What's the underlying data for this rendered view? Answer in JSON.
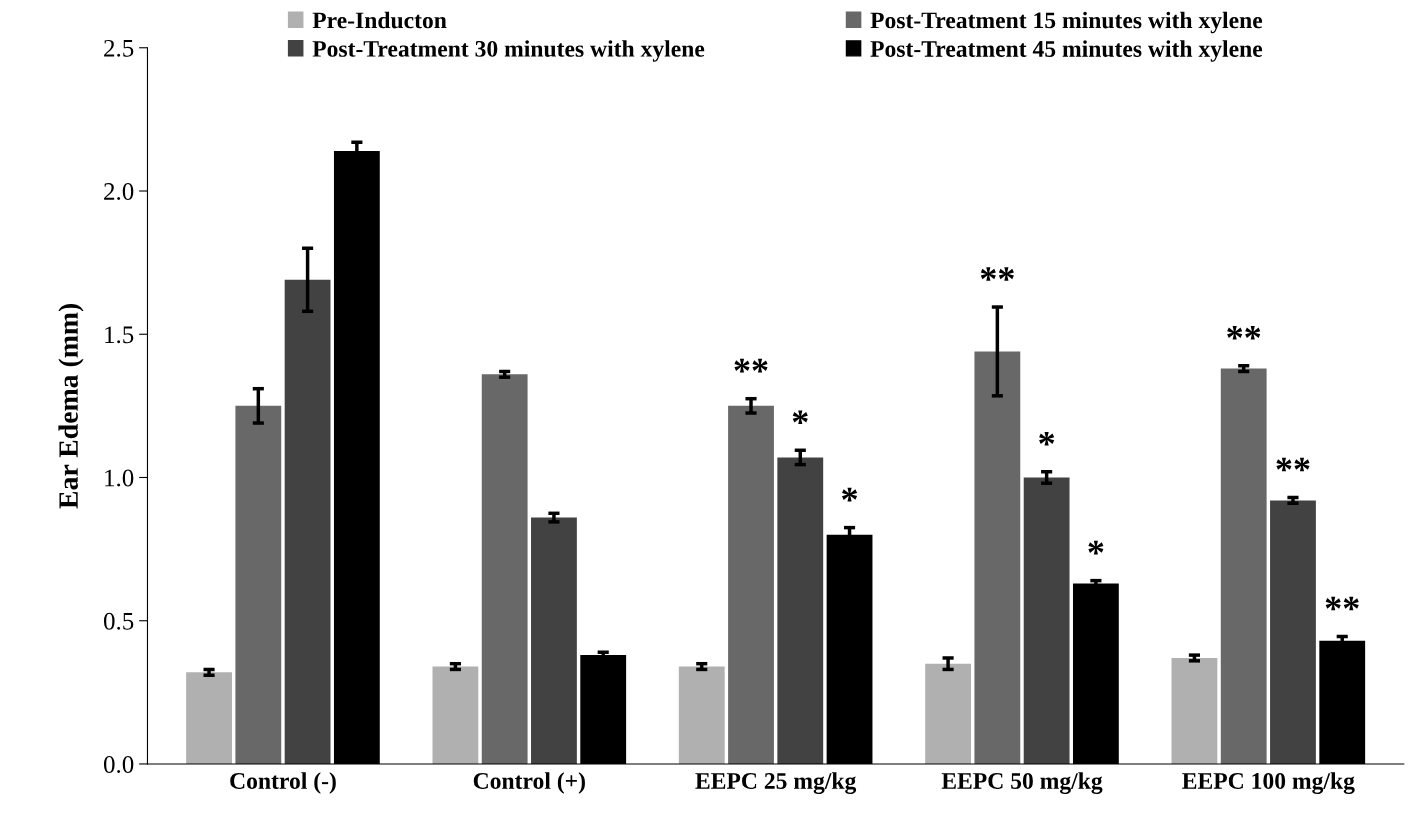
{
  "chart_data": {
    "type": "bar",
    "ylabel": "Ear Edema (mm)",
    "categories": [
      "Control (-)",
      "Control (+)",
      "EEPC 25 mg/kg",
      "EEPC 50 mg/kg",
      "EEPC 100 mg/kg"
    ],
    "series": [
      {
        "name": "Pre-Inducton",
        "color": "#b0b0b0",
        "values": [
          0.32,
          0.34,
          0.34,
          0.35,
          0.37
        ],
        "errors": [
          0.01,
          0.01,
          0.01,
          0.02,
          0.01
        ]
      },
      {
        "name": "Post-Treatment 15 minutes with xylene",
        "color": "#686868",
        "values": [
          1.25,
          1.36,
          1.25,
          1.44,
          1.38
        ],
        "errors": [
          0.06,
          0.01,
          0.025,
          0.155,
          0.01
        ]
      },
      {
        "name": "Post-Treatment 30 minutes with xylene",
        "color": "#424242",
        "values": [
          1.69,
          0.86,
          1.07,
          1.0,
          0.92
        ],
        "errors": [
          0.11,
          0.015,
          0.025,
          0.02,
          0.01
        ]
      },
      {
        "name": "Post-Treatment 45 minutes with xylene",
        "color": "#000000",
        "values": [
          2.14,
          0.38,
          0.8,
          0.63,
          0.43
        ],
        "errors": [
          0.03,
          0.01,
          0.025,
          0.01,
          0.015
        ]
      }
    ],
    "annotations": [
      {
        "text": "**",
        "x": "EEPC 25 mg/kg",
        "y": 1.25
      },
      {
        "text": "*",
        "x": "EEPC 25 mg/kg",
        "y": 1.07
      },
      {
        "text": "*",
        "x": "EEPC 25 mg/kg",
        "y": 0.8
      },
      {
        "text": "**",
        "x": "EEPC 50 mg/kg",
        "y": 1.44
      },
      {
        "text": "*",
        "x": "EEPC 50 mg/kg",
        "y": 1.0
      },
      {
        "text": "*",
        "x": "EEPC 50 mg/kg",
        "y": 0.63
      },
      {
        "text": "**",
        "x": "EEPC 100 mg/kg",
        "y": 1.38
      },
      {
        "text": "**",
        "x": "EEPC 100 mg/kg",
        "y": 0.92
      },
      {
        "text": "**",
        "x": "EEPC 100 mg/kg",
        "y": 0.43
      }
    ],
    "ylim": [
      0,
      2.5
    ],
    "yticks": [
      {
        "value": 0,
        "label": "0.0"
      },
      {
        "value": 0.5,
        "label": "0.5"
      },
      {
        "value": 1.0,
        "label": "1.0"
      },
      {
        "value": 1.5,
        "label": "1.5"
      },
      {
        "value": 2.0,
        "label": "2.0"
      },
      {
        "value": 2.5,
        "label": "2.5"
      }
    ],
    "legend": "top",
    "grid": false
  }
}
